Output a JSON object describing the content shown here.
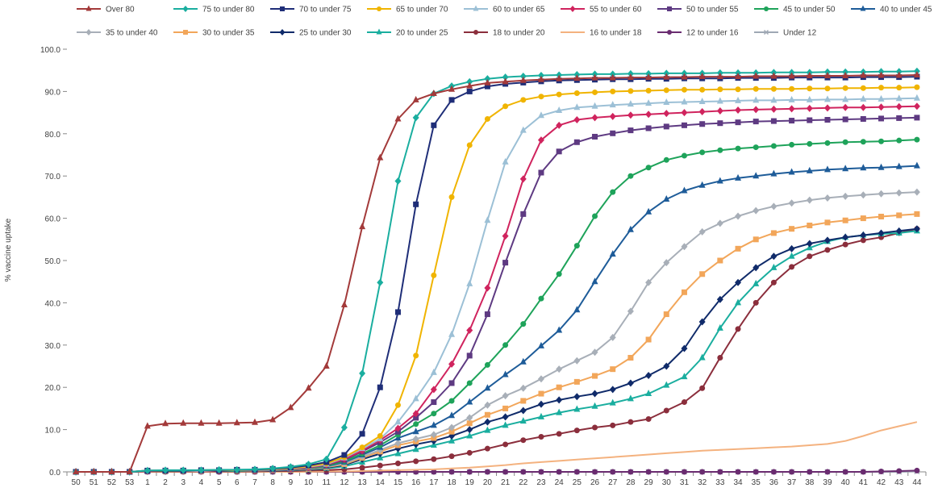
{
  "chart_data": {
    "type": "line",
    "title": "",
    "xlabel": "",
    "ylabel": "% vaccine uptake",
    "ylim": [
      0,
      100
    ],
    "yticks": [
      "0.0",
      "10.0",
      "20.0",
      "30.0",
      "40.0",
      "50.0",
      "60.0",
      "70.0",
      "80.0",
      "90.0",
      "100.0"
    ],
    "legend_position": "top",
    "grid": false,
    "categories": [
      "50",
      "51",
      "52",
      "53",
      "1",
      "2",
      "3",
      "4",
      "5",
      "6",
      "7",
      "8",
      "9",
      "10",
      "11",
      "12",
      "13",
      "14",
      "15",
      "16",
      "17",
      "18",
      "19",
      "20",
      "21",
      "22",
      "23",
      "24",
      "25",
      "26",
      "27",
      "28",
      "29",
      "30",
      "31",
      "32",
      "33",
      "34",
      "35",
      "36",
      "37",
      "38",
      "39",
      "40",
      "41",
      "42",
      "43",
      "44"
    ],
    "series": [
      {
        "name": "Over 80",
        "color": "#A33A3A",
        "marker": "triangle",
        "values": [
          0,
          0,
          0,
          0,
          10.8,
          11.4,
          11.5,
          11.5,
          11.5,
          11.6,
          11.7,
          12.3,
          15.2,
          19.8,
          25.0,
          39.5,
          58.0,
          74.3,
          83.5,
          88.0,
          89.5,
          90.5,
          91.3,
          92.0,
          92.3,
          92.6,
          92.8,
          93.0,
          93.1,
          93.2,
          93.2,
          93.3,
          93.3,
          93.4,
          93.4,
          93.5,
          93.5,
          93.5,
          93.6,
          93.6,
          93.6,
          93.7,
          93.7,
          93.7,
          93.8,
          93.8,
          93.8,
          93.9
        ]
      },
      {
        "name": "75 to under 80",
        "color": "#1AAE9F",
        "marker": "diamond",
        "values": [
          0,
          0,
          0,
          0,
          0.3,
          0.4,
          0.4,
          0.4,
          0.5,
          0.5,
          0.6,
          0.8,
          1.2,
          1.8,
          3.0,
          10.5,
          23.3,
          44.8,
          68.8,
          83.8,
          89.5,
          91.3,
          92.3,
          93.0,
          93.4,
          93.6,
          93.8,
          93.9,
          94.0,
          94.1,
          94.1,
          94.2,
          94.2,
          94.3,
          94.3,
          94.3,
          94.4,
          94.4,
          94.4,
          94.5,
          94.5,
          94.5,
          94.6,
          94.6,
          94.6,
          94.7,
          94.7,
          94.8
        ]
      },
      {
        "name": "70 to under 75",
        "color": "#1F2E78",
        "marker": "square",
        "values": [
          0,
          0,
          0,
          0,
          0.3,
          0.3,
          0.3,
          0.4,
          0.4,
          0.5,
          0.5,
          0.7,
          1.0,
          1.5,
          2.3,
          4.0,
          9.0,
          20.0,
          37.8,
          63.3,
          82.0,
          88.0,
          90.0,
          91.2,
          91.8,
          92.1,
          92.4,
          92.6,
          92.7,
          92.8,
          92.9,
          92.9,
          93.0,
          93.0,
          93.1,
          93.1,
          93.1,
          93.2,
          93.2,
          93.2,
          93.3,
          93.3,
          93.3,
          93.3,
          93.4,
          93.4,
          93.4,
          93.5
        ]
      },
      {
        "name": "65 to under 70",
        "color": "#F0B400",
        "marker": "circle",
        "values": [
          0,
          0,
          0,
          0,
          0.3,
          0.3,
          0.3,
          0.4,
          0.4,
          0.4,
          0.5,
          0.6,
          0.9,
          1.3,
          2.0,
          3.5,
          5.8,
          8.5,
          15.8,
          27.5,
          46.5,
          65.0,
          77.3,
          83.5,
          86.5,
          88.0,
          88.8,
          89.3,
          89.6,
          89.8,
          90.0,
          90.1,
          90.2,
          90.3,
          90.4,
          90.4,
          90.5,
          90.5,
          90.6,
          90.6,
          90.6,
          90.7,
          90.7,
          90.8,
          90.8,
          90.9,
          90.9,
          91.0
        ]
      },
      {
        "name": "60 to under 65",
        "color": "#9CC0D6",
        "marker": "triangle",
        "values": [
          0,
          0,
          0,
          0,
          0.3,
          0.3,
          0.3,
          0.3,
          0.4,
          0.4,
          0.4,
          0.5,
          0.8,
          1.2,
          1.8,
          3.3,
          5.5,
          7.8,
          11.8,
          17.3,
          23.5,
          32.5,
          44.5,
          59.5,
          73.3,
          80.8,
          84.3,
          85.5,
          86.2,
          86.5,
          86.8,
          87.0,
          87.2,
          87.4,
          87.5,
          87.6,
          87.7,
          87.8,
          87.9,
          87.9,
          88.0,
          88.0,
          88.1,
          88.1,
          88.2,
          88.2,
          88.3,
          88.4
        ]
      },
      {
        "name": "55 to under 60",
        "color": "#D0245E",
        "marker": "diamond",
        "values": [
          0,
          0,
          0,
          0,
          0.2,
          0.3,
          0.3,
          0.3,
          0.3,
          0.4,
          0.4,
          0.5,
          0.7,
          1.0,
          1.7,
          3.0,
          5.0,
          7.5,
          10.3,
          13.8,
          19.5,
          25.5,
          33.5,
          43.5,
          55.8,
          69.3,
          78.5,
          82.0,
          83.3,
          83.8,
          84.1,
          84.4,
          84.6,
          84.8,
          85.0,
          85.2,
          85.4,
          85.6,
          85.7,
          85.8,
          85.9,
          86.0,
          86.1,
          86.2,
          86.2,
          86.3,
          86.4,
          86.5
        ]
      },
      {
        "name": "50 to under 55",
        "color": "#5E3A82",
        "marker": "square",
        "values": [
          0,
          0,
          0,
          0,
          0.2,
          0.3,
          0.3,
          0.3,
          0.3,
          0.4,
          0.4,
          0.5,
          0.7,
          1.0,
          1.6,
          2.8,
          4.8,
          7.0,
          9.5,
          12.8,
          16.5,
          21.0,
          27.5,
          37.3,
          49.5,
          61.0,
          70.8,
          75.8,
          78.0,
          79.3,
          80.1,
          80.8,
          81.3,
          81.7,
          82.0,
          82.3,
          82.5,
          82.7,
          82.9,
          83.0,
          83.1,
          83.2,
          83.3,
          83.4,
          83.5,
          83.6,
          83.7,
          83.8
        ]
      },
      {
        "name": "45 to under 50",
        "color": "#1EA35A",
        "marker": "circle",
        "values": [
          0,
          0,
          0,
          0,
          0.2,
          0.2,
          0.3,
          0.3,
          0.3,
          0.3,
          0.4,
          0.5,
          0.6,
          0.9,
          1.4,
          2.5,
          4.3,
          6.3,
          8.8,
          11.3,
          13.8,
          16.8,
          21.0,
          25.3,
          30.0,
          35.0,
          41.0,
          46.8,
          53.5,
          60.5,
          66.2,
          70.0,
          72.0,
          73.8,
          74.8,
          75.6,
          76.1,
          76.5,
          76.8,
          77.1,
          77.4,
          77.6,
          77.8,
          78.0,
          78.1,
          78.2,
          78.4,
          78.6
        ]
      },
      {
        "name": "40 to under 45",
        "color": "#1E5C99",
        "marker": "triangle",
        "values": [
          0,
          0,
          0,
          0,
          0.2,
          0.2,
          0.2,
          0.3,
          0.3,
          0.3,
          0.4,
          0.4,
          0.6,
          0.9,
          1.3,
          2.3,
          4.0,
          5.8,
          8.0,
          9.5,
          11.0,
          13.3,
          16.5,
          19.8,
          23.0,
          26.0,
          29.8,
          33.5,
          38.3,
          45.0,
          51.5,
          57.3,
          61.5,
          64.5,
          66.5,
          67.8,
          68.8,
          69.5,
          70.0,
          70.5,
          70.9,
          71.2,
          71.5,
          71.7,
          71.9,
          72.0,
          72.2,
          72.4
        ]
      },
      {
        "name": "35 to under 40",
        "color": "#A8AFB8",
        "marker": "diamond",
        "values": [
          0,
          0,
          0,
          0,
          0.2,
          0.2,
          0.2,
          0.2,
          0.3,
          0.3,
          0.3,
          0.4,
          0.5,
          0.8,
          1.2,
          2.0,
          3.6,
          5.2,
          6.8,
          7.8,
          8.8,
          10.5,
          12.8,
          15.8,
          18.0,
          19.8,
          22.0,
          24.3,
          26.3,
          28.3,
          31.8,
          38.0,
          44.8,
          49.5,
          53.3,
          56.8,
          58.8,
          60.5,
          61.8,
          62.8,
          63.6,
          64.3,
          64.8,
          65.2,
          65.5,
          65.8,
          66.0,
          66.2
        ]
      },
      {
        "name": "30 to under 35",
        "color": "#F2A65A",
        "marker": "square",
        "values": [
          0,
          0,
          0,
          0,
          0.2,
          0.2,
          0.2,
          0.2,
          0.3,
          0.3,
          0.3,
          0.4,
          0.5,
          0.7,
          1.1,
          1.8,
          3.3,
          4.8,
          6.3,
          7.2,
          8.0,
          9.5,
          11.5,
          13.5,
          15.0,
          16.8,
          18.5,
          20.0,
          21.3,
          22.7,
          24.3,
          27.0,
          31.3,
          37.3,
          42.5,
          46.8,
          50.0,
          52.8,
          55.0,
          56.5,
          57.5,
          58.3,
          59.0,
          59.5,
          60.0,
          60.4,
          60.7,
          61.0
        ]
      },
      {
        "name": "25 to under 30",
        "color": "#102B6A",
        "marker": "diamond",
        "values": [
          0,
          0,
          0,
          0,
          0.2,
          0.2,
          0.2,
          0.2,
          0.2,
          0.3,
          0.3,
          0.3,
          0.4,
          0.6,
          1.0,
          1.6,
          3.0,
          4.3,
          5.5,
          6.5,
          7.3,
          8.5,
          10.0,
          11.8,
          13.0,
          14.5,
          16.0,
          17.0,
          17.8,
          18.5,
          19.5,
          21.0,
          22.8,
          25.0,
          29.2,
          35.5,
          40.8,
          44.8,
          48.3,
          51.0,
          52.8,
          54.0,
          54.8,
          55.5,
          56.0,
          56.5,
          57.0,
          57.5
        ]
      },
      {
        "name": "20 to under 25",
        "color": "#1AAE9F",
        "marker": "triangle",
        "values": [
          0,
          0,
          0,
          0,
          0.2,
          0.2,
          0.2,
          0.2,
          0.2,
          0.2,
          0.3,
          0.3,
          0.4,
          0.5,
          0.8,
          1.3,
          2.3,
          3.3,
          4.3,
          5.3,
          6.3,
          7.3,
          8.5,
          9.8,
          11.0,
          12.0,
          13.0,
          14.0,
          14.8,
          15.5,
          16.3,
          17.3,
          18.5,
          20.5,
          22.5,
          27.0,
          34.0,
          40.0,
          44.5,
          48.3,
          51.0,
          53.0,
          54.5,
          55.5,
          56.0,
          56.3,
          56.5,
          57.0
        ]
      },
      {
        "name": "18 to under 20",
        "color": "#8B2E3C",
        "marker": "circle",
        "values": [
          0,
          0,
          0,
          0,
          0.1,
          0.1,
          0.1,
          0.1,
          0.1,
          0.1,
          0.1,
          0.2,
          0.2,
          0.3,
          0.4,
          0.6,
          1.0,
          1.5,
          2.0,
          2.5,
          3.0,
          3.7,
          4.5,
          5.5,
          6.5,
          7.5,
          8.3,
          9.0,
          9.8,
          10.5,
          11.0,
          11.8,
          12.5,
          14.5,
          16.5,
          19.8,
          27.0,
          33.8,
          40.0,
          44.8,
          48.5,
          51.0,
          52.5,
          53.8,
          54.8,
          55.5,
          56.5,
          57.5
        ]
      },
      {
        "name": "16 to under 18",
        "color": "#F4B27F",
        "marker": "none",
        "values": [
          0,
          0,
          0,
          0,
          0,
          0,
          0,
          0,
          0,
          0,
          0,
          0,
          0,
          0,
          0.1,
          0.1,
          0.2,
          0.3,
          0.4,
          0.5,
          0.6,
          0.8,
          1.0,
          1.3,
          1.6,
          2.0,
          2.3,
          2.6,
          2.9,
          3.2,
          3.5,
          3.8,
          4.1,
          4.4,
          4.7,
          5.0,
          5.2,
          5.4,
          5.6,
          5.8,
          6.0,
          6.3,
          6.6,
          7.3,
          8.5,
          9.8,
          10.8,
          11.8
        ]
      },
      {
        "name": "12 to under 16",
        "color": "#6A2C70",
        "marker": "circle",
        "values": [
          0,
          0,
          0,
          0,
          0,
          0,
          0,
          0,
          0,
          0,
          0,
          0,
          0,
          0,
          0,
          0,
          0,
          0,
          0,
          0,
          0,
          0,
          0,
          0,
          0,
          0,
          0,
          0,
          0,
          0,
          0,
          0,
          0,
          0,
          0,
          0,
          0,
          0,
          0,
          0,
          0,
          0,
          0,
          0,
          0,
          0.1,
          0.2,
          0.3
        ]
      },
      {
        "name": "Under 12",
        "color": "#9FA8B4",
        "marker": "x",
        "values": [
          0,
          0,
          0,
          0,
          0,
          0,
          0,
          0,
          0,
          0,
          0,
          0,
          0,
          0,
          0,
          0,
          0,
          0,
          0,
          0,
          0,
          0,
          0,
          0,
          0,
          0,
          0,
          0,
          0,
          0,
          0,
          0,
          0,
          0,
          0,
          0,
          0,
          0,
          0,
          0,
          0,
          0,
          0,
          0,
          0,
          0,
          0,
          0.1
        ]
      }
    ]
  }
}
